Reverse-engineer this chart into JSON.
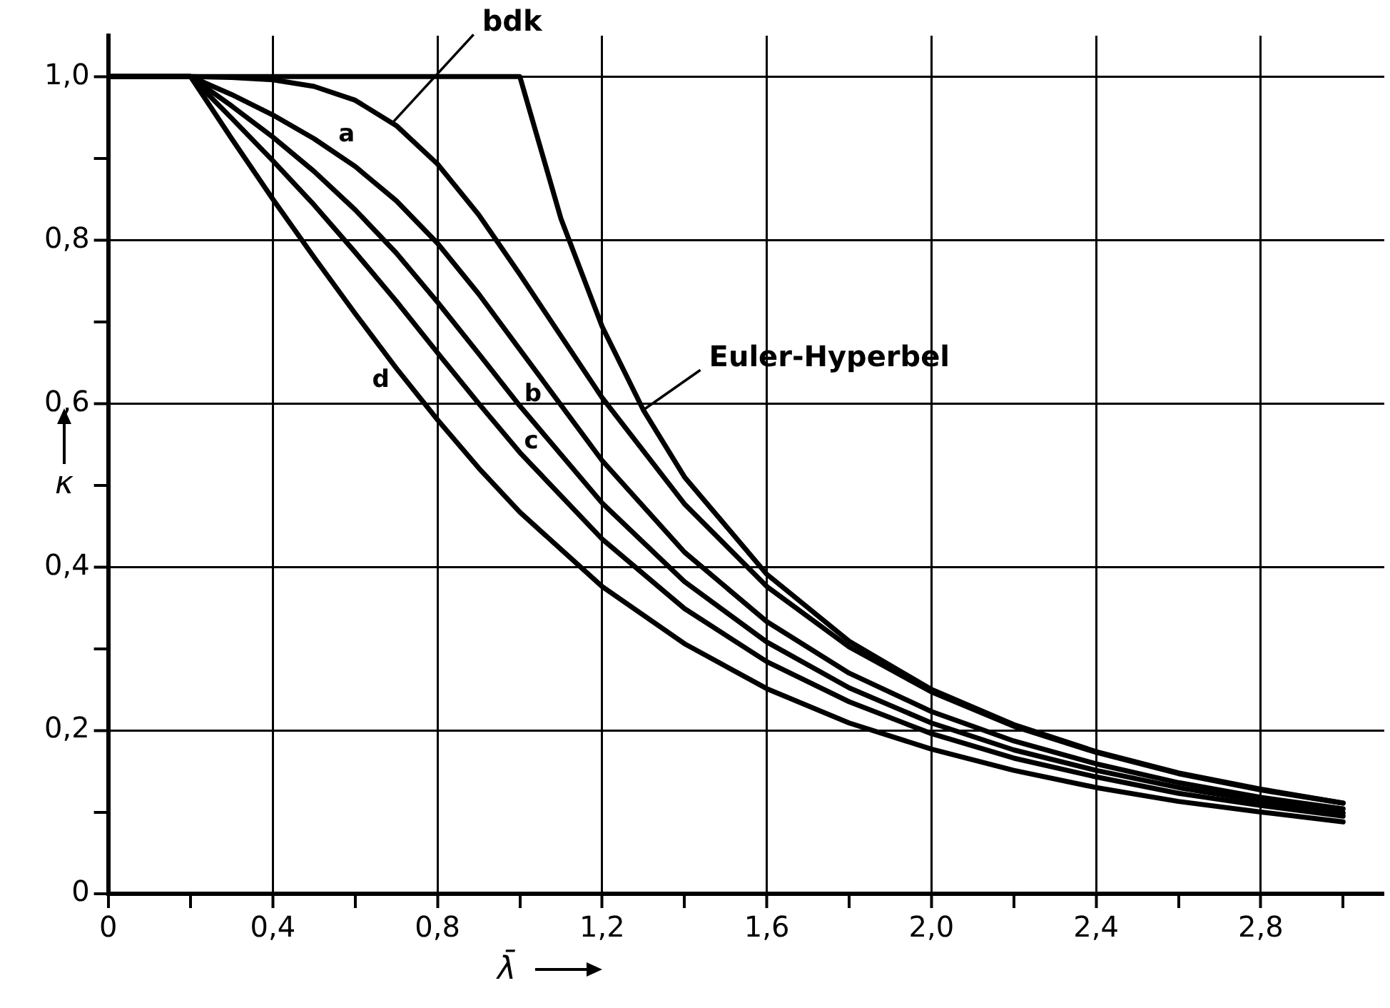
{
  "chart_data": {
    "type": "line",
    "xlabel": "λ̄",
    "ylabel": "κ",
    "x": [
      0,
      0.2,
      0.3,
      0.4,
      0.5,
      0.6,
      0.7,
      0.8,
      0.9,
      1.0,
      1.2,
      1.4,
      1.6,
      1.8,
      2.0,
      2.2,
      2.4,
      2.6,
      2.8,
      3.0
    ],
    "series": [
      {
        "name": "bdk",
        "color": "#000000",
        "values": [
          1,
          1,
          0.999,
          0.996,
          0.988,
          0.971,
          0.94,
          0.893,
          0.831,
          0.758,
          0.607,
          0.477,
          0.376,
          0.302,
          0.247,
          0.205,
          0.173,
          0.147,
          0.127,
          0.111
        ]
      },
      {
        "name": "a",
        "color": "#000000",
        "values": [
          1,
          1,
          0.978,
          0.953,
          0.924,
          0.89,
          0.848,
          0.796,
          0.734,
          0.666,
          0.53,
          0.418,
          0.333,
          0.27,
          0.223,
          0.187,
          0.159,
          0.136,
          0.118,
          0.104
        ]
      },
      {
        "name": "b",
        "color": "#000000",
        "values": [
          1,
          1,
          0.964,
          0.926,
          0.884,
          0.837,
          0.784,
          0.724,
          0.661,
          0.597,
          0.478,
          0.382,
          0.308,
          0.252,
          0.209,
          0.176,
          0.151,
          0.13,
          0.113,
          0.099
        ]
      },
      {
        "name": "c",
        "color": "#000000",
        "values": [
          1,
          1,
          0.949,
          0.897,
          0.843,
          0.785,
          0.725,
          0.662,
          0.6,
          0.54,
          0.434,
          0.349,
          0.284,
          0.235,
          0.196,
          0.166,
          0.143,
          0.123,
          0.108,
          0.095
        ]
      },
      {
        "name": "d",
        "color": "#000000",
        "values": [
          1,
          1,
          0.924,
          0.85,
          0.779,
          0.71,
          0.643,
          0.58,
          0.521,
          0.467,
          0.376,
          0.306,
          0.251,
          0.209,
          0.177,
          0.151,
          0.13,
          0.113,
          0.1,
          0.088
        ]
      },
      {
        "name": "Euler-Hyperbel",
        "color": "#000000",
        "x": [
          0,
          1.0,
          1.1,
          1.2,
          1.3,
          1.4,
          1.6,
          1.8,
          2.0,
          2.2,
          2.4,
          2.6,
          2.8,
          3.0
        ],
        "values": [
          1,
          1,
          0.826,
          0.694,
          0.592,
          0.51,
          0.391,
          0.309,
          0.25,
          0.207,
          0.174,
          0.148,
          0.128,
          0.111
        ]
      }
    ],
    "xlim": [
      0,
      3.1
    ],
    "xticks": [
      0,
      {
        "value": 0.2,
        "label": null
      },
      {
        "value": 0.4,
        "label": "0,4"
      },
      {
        "value": 0.6,
        "label": null
      },
      {
        "value": 0.8,
        "label": "0,8"
      },
      {
        "value": 1.0,
        "label": null
      },
      {
        "value": 1.2,
        "label": "1,2"
      },
      {
        "value": 1.4,
        "label": null
      },
      {
        "value": 1.6,
        "label": "1,6"
      },
      {
        "value": 1.8,
        "label": null
      },
      {
        "value": 2.0,
        "label": "2,0"
      },
      {
        "value": 2.2,
        "label": null
      },
      {
        "value": 2.4,
        "label": "2,4"
      },
      {
        "value": 2.6,
        "label": null
      },
      {
        "value": 2.8,
        "label": "2,8"
      },
      {
        "value": 3.0,
        "label": null
      }
    ],
    "ylim": [
      0,
      1.05
    ],
    "yticks": [
      0,
      {
        "value": 0.1,
        "label": null
      },
      {
        "value": 0.2,
        "label": "0,2"
      },
      {
        "value": 0.3,
        "label": null
      },
      {
        "value": 0.4,
        "label": "0,4"
      },
      {
        "value": 0.5,
        "label": null
      },
      {
        "value": 0.6,
        "label": "0,6"
      },
      {
        "value": 0.7,
        "label": null
      },
      {
        "value": 0.8,
        "label": "0,8"
      },
      {
        "value": 0.9,
        "label": null
      },
      {
        "value": 1.0,
        "label": "1,0"
      }
    ],
    "grid": true,
    "legend": false,
    "marker": "none",
    "line_style": "solid"
  }
}
